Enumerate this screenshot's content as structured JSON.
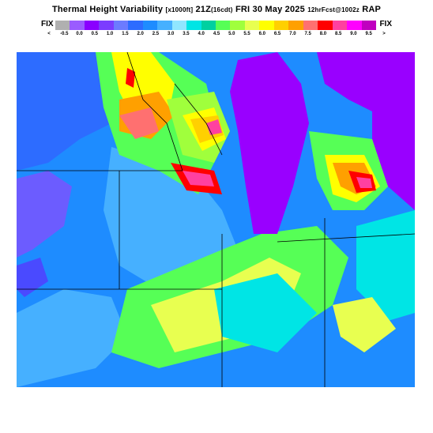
{
  "header": {
    "title_main": "Thermal Height Variability",
    "title_units": "[x1000ft]",
    "title_time": "21Z",
    "title_local": "(16cdt)",
    "title_date": "FRI 30 May 2025",
    "title_forecast": "12hrFcst@1002z",
    "title_model": "RAP"
  },
  "legend": {
    "fix_left": "FIX",
    "fix_right": "FIX",
    "colors": [
      "#b0b0b0",
      "#9a5cff",
      "#8a00ff",
      "#7b3cff",
      "#6c7bff",
      "#2d6cff",
      "#1e8cff",
      "#46b0ff",
      "#90e6ff",
      "#00e5e5",
      "#00d0a0",
      "#56ff56",
      "#a0ff3c",
      "#e8ff50",
      "#ffff00",
      "#ffd000",
      "#ffa000",
      "#ff7070",
      "#ff0000",
      "#ff40a0",
      "#ff00ff",
      "#c000c0"
    ],
    "tick_labels": [
      "<",
      "-0.5",
      "0.0",
      "0.5",
      "1.0",
      "1.5",
      "2.0",
      "2.5",
      "3.0",
      "3.5",
      "4.0",
      "4.5",
      "5.0",
      "5.5",
      "6.0",
      "6.5",
      "7.0",
      "7.5",
      "8.0",
      "8.5",
      "9.0",
      "9.5",
      ">"
    ]
  }
}
